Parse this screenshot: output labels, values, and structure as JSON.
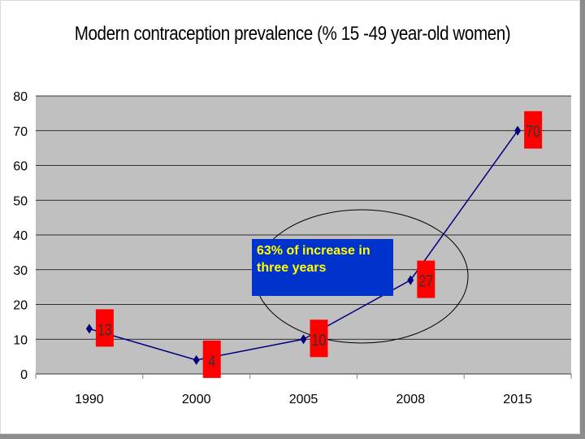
{
  "chart_data": {
    "type": "line",
    "title": "Modern contraception prevalence (% 15 -49 year-old women)",
    "categories": [
      "1990",
      "2000",
      "2005",
      "2008",
      "2015"
    ],
    "values": [
      13,
      4,
      10,
      27,
      70
    ],
    "data_labels": [
      "13",
      "4",
      "10",
      "27",
      "70"
    ],
    "ylim": [
      0,
      80
    ],
    "yticks": [
      "0",
      "10",
      "20",
      "30",
      "40",
      "50",
      "60",
      "70",
      "80"
    ],
    "grid": true,
    "legend": "none",
    "line_color": "#000080",
    "label_bg_color": "#ff0000",
    "plot_bg_color": "#c0c0c0",
    "annotation": "63% of increase in three years"
  }
}
